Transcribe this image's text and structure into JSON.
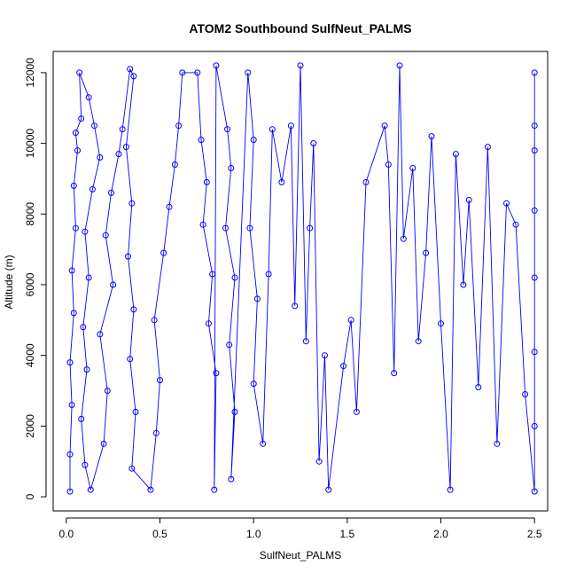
{
  "chart_data": {
    "type": "scatter",
    "title": "ATOM2 Southbound SulfNeut_PALMS",
    "xlabel": "SulfNeut_PALMS",
    "ylabel": "Altitude (m)",
    "xlim": [
      -0.07,
      2.57
    ],
    "ylim": [
      -400,
      12600
    ],
    "x_ticks": [
      {
        "value": 0.0,
        "label": "0.0"
      },
      {
        "value": 0.5,
        "label": "0.5"
      },
      {
        "value": 1.0,
        "label": "1.0"
      },
      {
        "value": 1.5,
        "label": "1.5"
      },
      {
        "value": 2.0,
        "label": "2.0"
      },
      {
        "value": 2.5,
        "label": "2.5"
      }
    ],
    "y_ticks": [
      {
        "value": 0,
        "label": "0"
      },
      {
        "value": 2000,
        "label": "2000"
      },
      {
        "value": 4000,
        "label": "4000"
      },
      {
        "value": 6000,
        "label": "6000"
      },
      {
        "value": 8000,
        "label": "8000"
      },
      {
        "value": 10000,
        "label": "10000"
      },
      {
        "value": 12000,
        "label": "12000"
      }
    ],
    "grid": false,
    "marker": "open-circle",
    "color": "#0000ff",
    "series": [
      {
        "points": [
          {
            "x": 0.02,
            "y": 150
          },
          {
            "x": 0.02,
            "y": 1200
          },
          {
            "x": 0.03,
            "y": 2600
          },
          {
            "x": 0.02,
            "y": 3800
          },
          {
            "x": 0.04,
            "y": 5200
          },
          {
            "x": 0.03,
            "y": 6400
          },
          {
            "x": 0.05,
            "y": 7600
          },
          {
            "x": 0.04,
            "y": 8800
          },
          {
            "x": 0.06,
            "y": 9800
          },
          {
            "x": 0.05,
            "y": 10300
          },
          {
            "x": 0.08,
            "y": 10700
          },
          {
            "x": 0.07,
            "y": 12000
          },
          {
            "x": 0.12,
            "y": 11300
          },
          {
            "x": 0.15,
            "y": 10500
          },
          {
            "x": 0.18,
            "y": 9600
          },
          {
            "x": 0.14,
            "y": 8700
          },
          {
            "x": 0.1,
            "y": 7500
          },
          {
            "x": 0.12,
            "y": 6200
          },
          {
            "x": 0.09,
            "y": 4800
          },
          {
            "x": 0.11,
            "y": 3600
          },
          {
            "x": 0.08,
            "y": 2200
          },
          {
            "x": 0.1,
            "y": 900
          },
          {
            "x": 0.13,
            "y": 200
          },
          {
            "x": 0.2,
            "y": 1500
          },
          {
            "x": 0.22,
            "y": 3000
          },
          {
            "x": 0.18,
            "y": 4600
          },
          {
            "x": 0.25,
            "y": 6000
          },
          {
            "x": 0.21,
            "y": 7400
          },
          {
            "x": 0.24,
            "y": 8600
          },
          {
            "x": 0.28,
            "y": 9700
          },
          {
            "x": 0.3,
            "y": 10400
          },
          {
            "x": 0.34,
            "y": 12100
          },
          {
            "x": 0.36,
            "y": 11900
          },
          {
            "x": 0.32,
            "y": 9900
          },
          {
            "x": 0.35,
            "y": 8300
          },
          {
            "x": 0.33,
            "y": 6800
          },
          {
            "x": 0.36,
            "y": 5300
          },
          {
            "x": 0.34,
            "y": 3900
          },
          {
            "x": 0.37,
            "y": 2400
          },
          {
            "x": 0.35,
            "y": 800
          },
          {
            "x": 0.45,
            "y": 200
          },
          {
            "x": 0.48,
            "y": 1800
          },
          {
            "x": 0.5,
            "y": 3300
          },
          {
            "x": 0.47,
            "y": 5000
          },
          {
            "x": 0.52,
            "y": 6900
          },
          {
            "x": 0.55,
            "y": 8200
          },
          {
            "x": 0.58,
            "y": 9400
          },
          {
            "x": 0.6,
            "y": 10500
          },
          {
            "x": 0.62,
            "y": 12000
          },
          {
            "x": 0.7,
            "y": 12000
          },
          {
            "x": 0.72,
            "y": 10100
          },
          {
            "x": 0.75,
            "y": 8900
          },
          {
            "x": 0.73,
            "y": 7700
          },
          {
            "x": 0.78,
            "y": 6300
          },
          {
            "x": 0.76,
            "y": 4900
          },
          {
            "x": 0.8,
            "y": 3500
          },
          {
            "x": 0.79,
            "y": 200
          },
          {
            "x": 0.8,
            "y": 12200
          },
          {
            "x": 0.86,
            "y": 10400
          },
          {
            "x": 0.88,
            "y": 9300
          },
          {
            "x": 0.85,
            "y": 7600
          },
          {
            "x": 0.9,
            "y": 6200
          },
          {
            "x": 0.87,
            "y": 4300
          },
          {
            "x": 0.9,
            "y": 2400
          },
          {
            "x": 0.88,
            "y": 500
          },
          {
            "x": 0.97,
            "y": 12000
          },
          {
            "x": 1.0,
            "y": 10100
          },
          {
            "x": 0.98,
            "y": 7600
          },
          {
            "x": 1.02,
            "y": 5600
          },
          {
            "x": 1.0,
            "y": 3200
          },
          {
            "x": 1.05,
            "y": 1500
          },
          {
            "x": 1.08,
            "y": 6300
          },
          {
            "x": 1.1,
            "y": 10400
          },
          {
            "x": 1.15,
            "y": 8900
          },
          {
            "x": 1.2,
            "y": 10500
          },
          {
            "x": 1.22,
            "y": 5400
          },
          {
            "x": 1.25,
            "y": 12200
          },
          {
            "x": 1.28,
            "y": 4400
          },
          {
            "x": 1.3,
            "y": 7600
          },
          {
            "x": 1.32,
            "y": 10000
          },
          {
            "x": 1.35,
            "y": 1000
          },
          {
            "x": 1.38,
            "y": 4000
          },
          {
            "x": 1.4,
            "y": 200
          },
          {
            "x": 1.48,
            "y": 3700
          },
          {
            "x": 1.52,
            "y": 5000
          },
          {
            "x": 1.55,
            "y": 2400
          },
          {
            "x": 1.6,
            "y": 8900
          },
          {
            "x": 1.7,
            "y": 10500
          },
          {
            "x": 1.72,
            "y": 9400
          },
          {
            "x": 1.75,
            "y": 3500
          },
          {
            "x": 1.78,
            "y": 12200
          },
          {
            "x": 1.8,
            "y": 7300
          },
          {
            "x": 1.85,
            "y": 9300
          },
          {
            "x": 1.88,
            "y": 4400
          },
          {
            "x": 1.92,
            "y": 6900
          },
          {
            "x": 1.95,
            "y": 10200
          },
          {
            "x": 2.0,
            "y": 4900
          },
          {
            "x": 2.05,
            "y": 200
          },
          {
            "x": 2.08,
            "y": 9700
          },
          {
            "x": 2.12,
            "y": 6000
          },
          {
            "x": 2.15,
            "y": 8400
          },
          {
            "x": 2.2,
            "y": 3100
          },
          {
            "x": 2.25,
            "y": 9900
          },
          {
            "x": 2.3,
            "y": 1500
          },
          {
            "x": 2.35,
            "y": 8300
          },
          {
            "x": 2.4,
            "y": 7700
          },
          {
            "x": 2.45,
            "y": 2900
          },
          {
            "x": 2.5,
            "y": 150
          },
          {
            "x": 2.5,
            "y": 2000
          },
          {
            "x": 2.5,
            "y": 4100
          },
          {
            "x": 2.5,
            "y": 6200
          },
          {
            "x": 2.5,
            "y": 8100
          },
          {
            "x": 2.5,
            "y": 9800
          },
          {
            "x": 2.5,
            "y": 10500
          },
          {
            "x": 2.5,
            "y": 12000
          }
        ]
      }
    ]
  }
}
